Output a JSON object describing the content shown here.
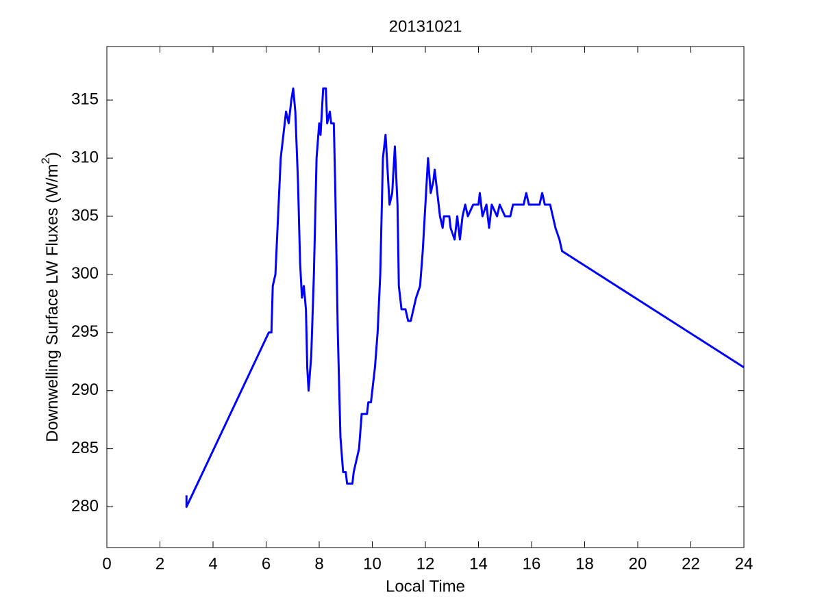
{
  "chart_data": {
    "type": "line",
    "title": "20131021",
    "x_label": "Local Time",
    "y_label": {
      "text": "Downwelling Surface LW Fluxes (W/m",
      "superscript": "2",
      "end": ")"
    },
    "xlim": [
      0,
      24
    ],
    "xticks": [
      0,
      2,
      4,
      6,
      8,
      10,
      12,
      14,
      16,
      18,
      20,
      22,
      24
    ],
    "ylim": [
      276.5,
      319.6
    ],
    "yticks": [
      280,
      285,
      290,
      295,
      300,
      305,
      310,
      315
    ],
    "grid": false,
    "series": [
      {
        "color": "#0000ff",
        "x": [
          3.0,
          3.0,
          6.1,
          6.2,
          6.25,
          6.35,
          6.45,
          6.55,
          6.65,
          6.75,
          6.85,
          6.95,
          7.02,
          7.1,
          7.2,
          7.28,
          7.35,
          7.42,
          7.5,
          7.55,
          7.6,
          7.7,
          7.8,
          7.9,
          8.0,
          8.05,
          8.15,
          8.25,
          8.3,
          8.4,
          8.45,
          8.55,
          8.6,
          8.7,
          8.8,
          8.9,
          9.0,
          9.05,
          9.25,
          9.3,
          9.4,
          9.5,
          9.6,
          9.8,
          9.85,
          9.95,
          10.0,
          10.1,
          10.2,
          10.3,
          10.4,
          10.5,
          10.55,
          10.6,
          10.65,
          10.75,
          10.85,
          10.95,
          11.0,
          11.1,
          11.25,
          11.35,
          11.45,
          11.55,
          11.65,
          11.8,
          11.9,
          12.0,
          12.1,
          12.2,
          12.3,
          12.35,
          12.45,
          12.55,
          12.65,
          12.7,
          12.9,
          12.95,
          13.1,
          13.2,
          13.3,
          13.4,
          13.5,
          13.6,
          13.8,
          14.0,
          14.05,
          14.15,
          14.3,
          14.4,
          14.5,
          14.7,
          14.8,
          15.0,
          15.2,
          15.3,
          15.5,
          15.7,
          15.8,
          15.9,
          16.3,
          16.4,
          16.5,
          16.7,
          16.8,
          16.9,
          17.05,
          17.15,
          24.0
        ],
        "values": [
          281,
          280,
          295,
          295,
          299,
          300,
          305,
          310,
          312,
          314,
          313,
          315,
          316,
          314,
          308,
          301,
          298,
          299,
          297,
          292,
          290,
          293,
          300,
          310,
          313,
          312,
          316,
          316,
          313,
          314,
          313,
          313,
          308,
          295,
          286,
          283,
          283,
          282,
          282,
          283,
          284,
          285,
          288,
          288,
          289,
          289,
          290,
          292,
          295,
          300,
          310,
          312,
          310,
          308,
          306,
          307,
          311,
          306,
          299,
          297,
          297,
          296,
          296,
          297,
          298,
          299,
          302,
          306,
          310,
          307,
          308,
          309,
          307,
          305,
          304,
          305,
          305,
          304,
          303,
          305,
          303,
          305,
          306,
          305,
          306,
          306,
          307,
          305,
          306,
          304,
          306,
          305,
          306,
          305,
          305,
          306,
          306,
          306,
          307,
          306,
          306,
          307,
          306,
          306,
          305,
          304,
          303,
          302,
          292
        ]
      }
    ]
  }
}
